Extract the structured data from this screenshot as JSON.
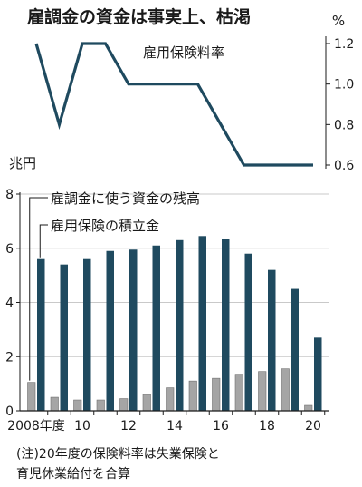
{
  "title": "雇調金の資金は事実上、枯渇",
  "note": [
    "(注)20年度の保険料率は失業保険と",
    "育児休業給付を合算"
  ],
  "colors": {
    "line": "#1f4a5f",
    "dark_bar": "#1f4a5f",
    "gray_bar": "#a5a5a5"
  },
  "chart_data": [
    {
      "type": "line",
      "unit": "%",
      "series": [
        {
          "name": "雇用保険料率",
          "x": [
            "2008",
            "2009",
            "2010",
            "2011",
            "2012",
            "2013",
            "2014",
            "2015",
            "2016",
            "2017",
            "2018",
            "2019",
            "2020"
          ],
          "values": [
            1.2,
            0.8,
            1.2,
            1.2,
            1.0,
            1.0,
            1.0,
            1.0,
            0.8,
            0.6,
            0.6,
            0.6,
            0.6
          ]
        }
      ],
      "ytick_labels": [
        "0.6",
        "0.8",
        "1.0",
        "1.2"
      ],
      "ylim": [
        0.6,
        1.2
      ]
    },
    {
      "type": "bar",
      "unit": "兆円",
      "categories": [
        "2008",
        "2009",
        "2010",
        "2011",
        "2012",
        "2013",
        "2014",
        "2015",
        "2016",
        "2017",
        "2018",
        "2019",
        "2020"
      ],
      "xtick_labels": [
        "2008年度",
        "10",
        "12",
        "14",
        "16",
        "18",
        "20"
      ],
      "series": [
        {
          "name": "雇調金に使う資金の残高",
          "values": [
            1.05,
            0.5,
            0.4,
            0.4,
            0.45,
            0.6,
            0.85,
            1.1,
            1.2,
            1.35,
            1.45,
            1.55,
            0.2
          ]
        },
        {
          "name": "雇用保険の積立金",
          "values": [
            5.6,
            5.4,
            5.6,
            5.9,
            5.95,
            6.1,
            6.3,
            6.45,
            6.35,
            5.8,
            5.2,
            4.5,
            2.7
          ]
        }
      ],
      "ytick_labels": [
        "0",
        "2",
        "4",
        "6",
        "8"
      ],
      "ylim": [
        0,
        8
      ]
    }
  ]
}
